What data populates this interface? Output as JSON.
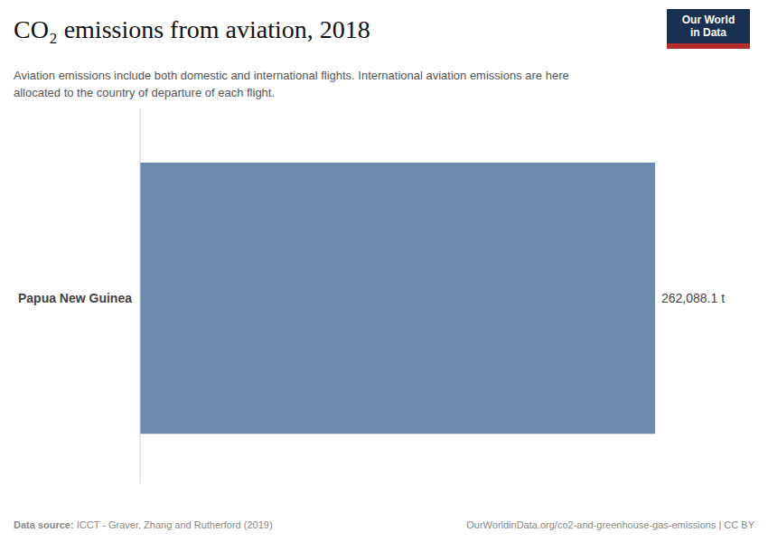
{
  "chart_data": {
    "type": "bar",
    "orientation": "horizontal",
    "title": "CO₂ emissions from aviation, 2018",
    "subtitle": "Aviation emissions include both domestic and international flights. International aviation emissions are here\nallocated to the country of departure of each flight.",
    "categories": [
      "Papua New Guinea"
    ],
    "values": [
      262088.1
    ],
    "value_labels": [
      "262,088.1 t"
    ],
    "data_labels": true,
    "color": "#6b8cae",
    "xlim": [
      0,
      262088.1
    ],
    "xticks": [],
    "tick_labels": "y",
    "grid": false,
    "annotations": [
      "Data source:",
      " ICCT - Graver, Zhang and Rutherford (2019)",
      "OurWorldinData.org/co2-and-greenhouse-gas-emissions | CC BY",
      "Our World\nin Data"
    ]
  }
}
